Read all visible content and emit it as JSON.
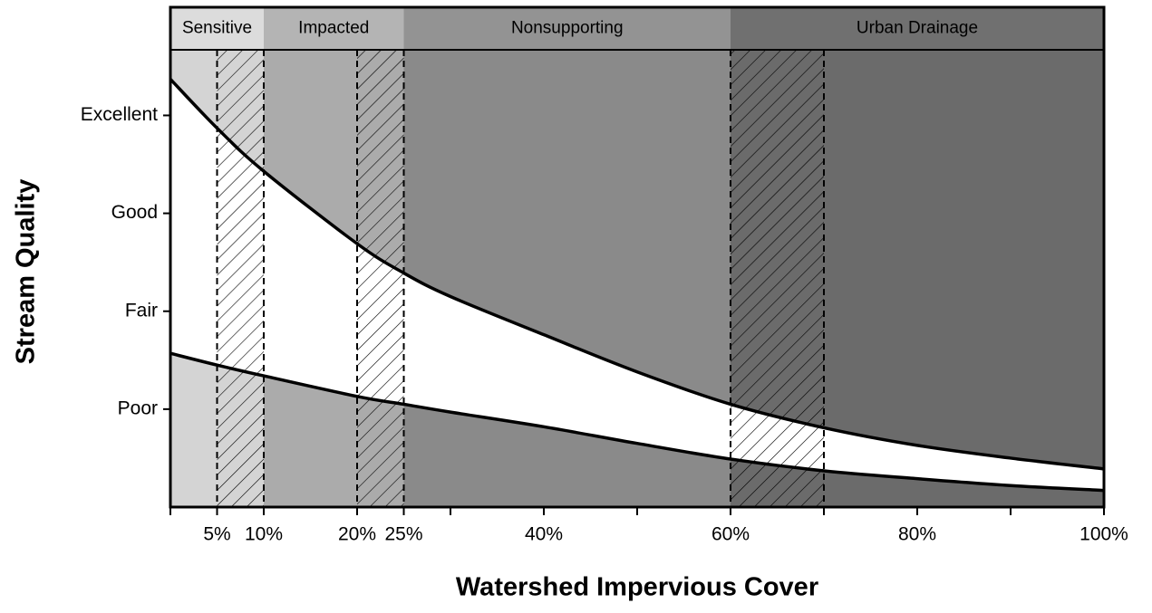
{
  "chart_data": {
    "type": "line",
    "xlabel": "Watershed Impervious Cover",
    "ylabel": "Stream Quality",
    "xlim": [
      0,
      100
    ],
    "ylim": [
      0,
      4.67
    ],
    "xticks": [
      {
        "value": 5,
        "label": "5%"
      },
      {
        "value": 10,
        "label": "10%"
      },
      {
        "value": 20,
        "label": "20%"
      },
      {
        "value": 25,
        "label": "25%"
      },
      {
        "value": 40,
        "label": "40%"
      },
      {
        "value": 60,
        "label": "60%"
      },
      {
        "value": 80,
        "label": "80%"
      },
      {
        "value": 100,
        "label": "100%"
      }
    ],
    "xminorticks": [
      0,
      30,
      50,
      70,
      90
    ],
    "yticks": [
      {
        "value": 4,
        "label": "Excellent"
      },
      {
        "value": 3,
        "label": "Good"
      },
      {
        "value": 2,
        "label": "Fair"
      },
      {
        "value": 1,
        "label": "Poor"
      }
    ],
    "zones": [
      {
        "name": "Sensitive",
        "range": [
          0,
          10
        ],
        "color": "#d4d4d4",
        "header_color": "#dcdcdc"
      },
      {
        "name": "Impacted",
        "range": [
          10,
          25
        ],
        "color": "#ababab",
        "header_color": "#b4b4b4"
      },
      {
        "name": "Nonsupporting",
        "range": [
          25,
          60
        ],
        "color": "#8a8a8a",
        "header_color": "#939393"
      },
      {
        "name": "Urban Drainage",
        "range": [
          60,
          100
        ],
        "color": "#6b6b6b",
        "header_color": "#707070"
      }
    ],
    "transitions": [
      [
        5,
        10
      ],
      [
        20,
        25
      ],
      [
        60,
        70
      ]
    ],
    "x": [
      0,
      5,
      10,
      20,
      25,
      30,
      40,
      50,
      60,
      70,
      80,
      90,
      100
    ],
    "series": [
      {
        "name": "upper",
        "color": "#000000",
        "values": [
          4.37,
          3.87,
          3.43,
          2.69,
          2.39,
          2.15,
          1.76,
          1.38,
          1.05,
          0.81,
          0.63,
          0.5,
          0.39
        ]
      },
      {
        "name": "lower",
        "color": "#000000",
        "values": [
          1.57,
          1.45,
          1.34,
          1.13,
          1.05,
          0.97,
          0.82,
          0.65,
          0.49,
          0.37,
          0.29,
          0.22,
          0.17
        ]
      }
    ]
  }
}
